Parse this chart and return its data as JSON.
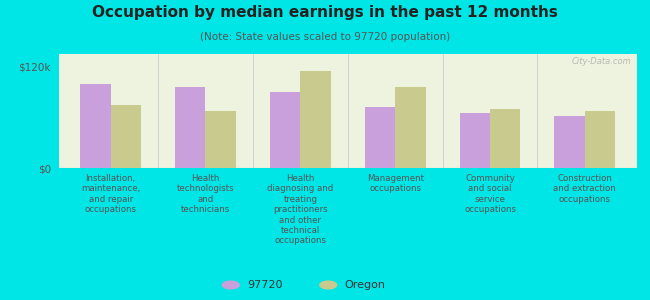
{
  "title": "Occupation by median earnings in the past 12 months",
  "subtitle": "(Note: State values scaled to 97720 population)",
  "background_color": "#00e5e5",
  "plot_bg_color": "#eef3df",
  "categories": [
    "Installation,\nmaintenance,\nand repair\noccupations",
    "Health\ntechnologists\nand\ntechnicians",
    "Health\ndiagnosing and\ntreating\npractitioners\nand other\ntechnical\noccupations",
    "Management\noccupations",
    "Community\nand social\nservice\noccupations",
    "Construction\nand extraction\noccupations"
  ],
  "values_97720": [
    100000,
    96000,
    90000,
    72000,
    65000,
    62000
  ],
  "values_oregon": [
    75000,
    68000,
    115000,
    96000,
    70000,
    68000
  ],
  "color_97720": "#c9a0dc",
  "color_oregon": "#c8ca8e",
  "ylim": [
    0,
    135000
  ],
  "ytick_values": [
    0,
    120000
  ],
  "ytick_labels": [
    "$0",
    "$120k"
  ],
  "legend_97720": "97720",
  "legend_oregon": "Oregon",
  "watermark": "City-Data.com"
}
